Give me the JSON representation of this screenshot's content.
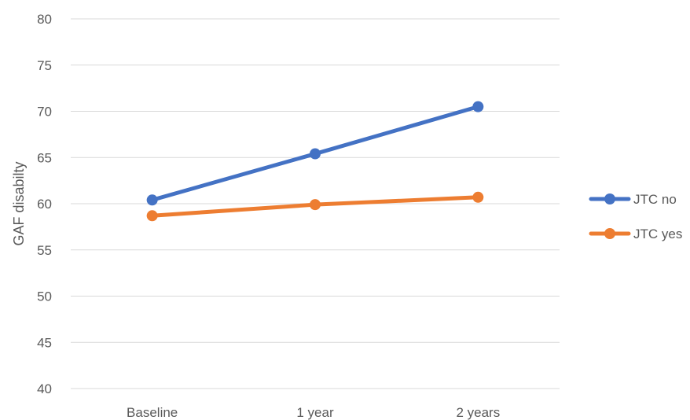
{
  "chart_data": {
    "type": "line",
    "title": "",
    "xlabel": "",
    "ylabel": "GAF disabilty",
    "categories": [
      "Baseline",
      "1 year",
      "2 years"
    ],
    "ylim": [
      40,
      80
    ],
    "yticks": [
      40,
      45,
      50,
      55,
      60,
      65,
      70,
      75,
      80
    ],
    "grid": true,
    "legend_position": "right",
    "series": [
      {
        "name": "JTC no",
        "color": "#4472C4",
        "values": [
          60.4,
          65.4,
          70.5
        ]
      },
      {
        "name": "JTC yes",
        "color": "#ED7D31",
        "values": [
          58.7,
          59.9,
          60.7
        ]
      }
    ]
  }
}
